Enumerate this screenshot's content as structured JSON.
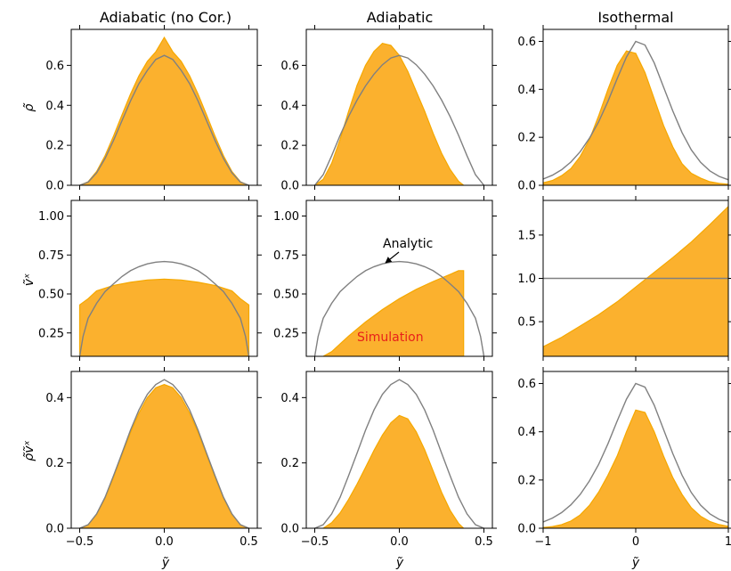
{
  "figure": {
    "column_titles": [
      "Adiabatic (no Cor.)",
      "Adiabatic",
      "Isothermal"
    ],
    "row_ylabels": [
      "ρ̃",
      "ṽˣ",
      "ρ̃ṽˣ"
    ],
    "col_xlabels": [
      "ỹ",
      "ỹ",
      "ỹ"
    ]
  },
  "colors": {
    "simulation_fill": "#fbb12e",
    "simulation_edge": "#f5a800",
    "analytic_line": "#808080",
    "annotation_red": "#e8211a"
  },
  "annotations": {
    "analytic": "Analytic",
    "simulation": "Simulation"
  },
  "chart_data": [
    {
      "type": "area",
      "panel": "row1-col1",
      "title": "Adiabatic (no Cor.)",
      "ylabel": "ρ̃",
      "xlabel": "",
      "xlim": [
        -0.55,
        0.55
      ],
      "ylim": [
        0,
        0.78
      ],
      "xticks": [
        -0.5,
        0.0,
        0.5
      ],
      "xticklabels": [
        "",
        "",
        ""
      ],
      "yticks": [
        0.0,
        0.2,
        0.4,
        0.6
      ],
      "yticklabels": [
        "0.0",
        "0.2",
        "0.4",
        "0.6"
      ],
      "series": [
        {
          "name": "Simulation",
          "kind": "fill",
          "x": [
            -0.5,
            -0.45,
            -0.4,
            -0.35,
            -0.3,
            -0.25,
            -0.2,
            -0.15,
            -0.1,
            -0.05,
            0.0,
            0.05,
            0.1,
            0.15,
            0.2,
            0.25,
            0.3,
            0.35,
            0.4,
            0.45,
            0.5
          ],
          "y": [
            0.0,
            0.018,
            0.069,
            0.148,
            0.246,
            0.352,
            0.456,
            0.548,
            0.62,
            0.668,
            0.74,
            0.668,
            0.62,
            0.548,
            0.456,
            0.352,
            0.246,
            0.148,
            0.069,
            0.018,
            0.0
          ]
        },
        {
          "name": "Analytic",
          "kind": "line",
          "x": [
            -0.5,
            -0.45,
            -0.4,
            -0.35,
            -0.3,
            -0.25,
            -0.2,
            -0.15,
            -0.1,
            -0.05,
            0.0,
            0.05,
            0.1,
            0.15,
            0.2,
            0.25,
            0.3,
            0.35,
            0.4,
            0.45,
            0.5
          ],
          "y": [
            0.0,
            0.016,
            0.062,
            0.134,
            0.224,
            0.323,
            0.421,
            0.508,
            0.575,
            0.63,
            0.65,
            0.63,
            0.575,
            0.508,
            0.421,
            0.323,
            0.224,
            0.134,
            0.062,
            0.016,
            0.0
          ]
        }
      ]
    },
    {
      "type": "area",
      "panel": "row1-col2",
      "title": "Adiabatic",
      "ylabel": "",
      "xlabel": "",
      "xlim": [
        -0.55,
        0.55
      ],
      "ylim": [
        0,
        0.78
      ],
      "xticks": [
        -0.5,
        0.0,
        0.5
      ],
      "xticklabels": [
        "",
        "",
        ""
      ],
      "yticks": [
        0.0,
        0.2,
        0.4,
        0.6
      ],
      "yticklabels": [
        "0.0",
        "0.2",
        "0.4",
        "0.6"
      ],
      "series": [
        {
          "name": "Simulation",
          "kind": "fill",
          "x": [
            -0.5,
            -0.45,
            -0.4,
            -0.35,
            -0.3,
            -0.25,
            -0.2,
            -0.15,
            -0.1,
            -0.05,
            0.0,
            0.05,
            0.1,
            0.15,
            0.2,
            0.25,
            0.3,
            0.35,
            0.38
          ],
          "y": [
            0.0,
            0.03,
            0.11,
            0.23,
            0.37,
            0.5,
            0.6,
            0.67,
            0.71,
            0.7,
            0.65,
            0.57,
            0.47,
            0.37,
            0.26,
            0.16,
            0.08,
            0.02,
            0.0
          ]
        },
        {
          "name": "Analytic",
          "kind": "line",
          "x": [
            -0.5,
            -0.45,
            -0.4,
            -0.35,
            -0.3,
            -0.25,
            -0.2,
            -0.15,
            -0.1,
            -0.05,
            0.0,
            0.05,
            0.1,
            0.15,
            0.2,
            0.25,
            0.3,
            0.35,
            0.4,
            0.45,
            0.5
          ],
          "y": [
            0.0,
            0.053,
            0.148,
            0.25,
            0.344,
            0.426,
            0.497,
            0.556,
            0.603,
            0.637,
            0.65,
            0.637,
            0.603,
            0.556,
            0.497,
            0.426,
            0.344,
            0.25,
            0.148,
            0.053,
            0.0
          ]
        }
      ]
    },
    {
      "type": "area",
      "panel": "row1-col3",
      "title": "Isothermal",
      "ylabel": "",
      "xlabel": "",
      "xlim": [
        -1,
        1
      ],
      "ylim": [
        0,
        0.65
      ],
      "xticks": [
        -1,
        0,
        1
      ],
      "xticklabels": [
        "",
        "",
        ""
      ],
      "yticks": [
        0.0,
        0.2,
        0.4,
        0.6
      ],
      "yticklabels": [
        "0.0",
        "0.2",
        "0.4",
        "0.6"
      ],
      "series": [
        {
          "name": "Simulation",
          "kind": "fill",
          "x": [
            -1.0,
            -0.9,
            -0.8,
            -0.7,
            -0.6,
            -0.5,
            -0.4,
            -0.3,
            -0.2,
            -0.1,
            0.0,
            0.1,
            0.2,
            0.3,
            0.4,
            0.5,
            0.6,
            0.7,
            0.8,
            0.9,
            1.0
          ],
          "y": [
            0.01,
            0.02,
            0.04,
            0.07,
            0.12,
            0.19,
            0.29,
            0.4,
            0.5,
            0.56,
            0.55,
            0.47,
            0.36,
            0.25,
            0.16,
            0.09,
            0.05,
            0.03,
            0.015,
            0.008,
            0.004
          ]
        },
        {
          "name": "Analytic",
          "kind": "line",
          "x": [
            -1.0,
            -0.9,
            -0.8,
            -0.7,
            -0.6,
            -0.5,
            -0.4,
            -0.3,
            -0.2,
            -0.1,
            0.0,
            0.1,
            0.2,
            0.3,
            0.4,
            0.5,
            0.6,
            0.7,
            0.8,
            0.9,
            1.0
          ],
          "y": [
            0.026,
            0.042,
            0.065,
            0.097,
            0.14,
            0.196,
            0.265,
            0.35,
            0.445,
            0.535,
            0.6,
            0.585,
            0.51,
            0.41,
            0.31,
            0.22,
            0.148,
            0.096,
            0.06,
            0.037,
            0.023
          ]
        }
      ]
    },
    {
      "type": "area",
      "panel": "row2-col1",
      "title": "",
      "ylabel": "ṽˣ",
      "xlabel": "",
      "xlim": [
        -0.55,
        0.55
      ],
      "ylim": [
        0.1,
        1.1
      ],
      "xticks": [
        -0.5,
        0.0,
        0.5
      ],
      "xticklabels": [
        "",
        "",
        ""
      ],
      "yticks": [
        0.25,
        0.5,
        0.75,
        1.0
      ],
      "yticklabels": [
        "0.25",
        "0.50",
        "0.75",
        "1.00"
      ],
      "series": [
        {
          "name": "Simulation",
          "kind": "fill",
          "x": [
            -0.5,
            -0.45,
            -0.4,
            -0.3,
            -0.2,
            -0.1,
            0.0,
            0.1,
            0.2,
            0.3,
            0.4,
            0.45,
            0.5
          ],
          "y": [
            0.43,
            0.47,
            0.52,
            0.555,
            0.575,
            0.59,
            0.595,
            0.59,
            0.575,
            0.555,
            0.52,
            0.47,
            0.43
          ]
        },
        {
          "name": "Analytic",
          "kind": "line",
          "x": [
            -0.5,
            -0.48,
            -0.45,
            -0.4,
            -0.35,
            -0.3,
            -0.25,
            -0.2,
            -0.15,
            -0.1,
            -0.05,
            0.0,
            0.05,
            0.1,
            0.15,
            0.2,
            0.25,
            0.3,
            0.35,
            0.4,
            0.45,
            0.48,
            0.5
          ],
          "y": [
            0.1,
            0.228,
            0.344,
            0.44,
            0.515,
            0.565,
            0.612,
            0.649,
            0.675,
            0.693,
            0.704,
            0.708,
            0.704,
            0.693,
            0.675,
            0.649,
            0.612,
            0.565,
            0.515,
            0.44,
            0.344,
            0.228,
            0.1
          ]
        }
      ]
    },
    {
      "type": "area",
      "panel": "row2-col2",
      "title": "",
      "ylabel": "",
      "xlabel": "",
      "xlim": [
        -0.55,
        0.55
      ],
      "ylim": [
        0.1,
        1.1
      ],
      "xticks": [
        -0.5,
        0.0,
        0.5
      ],
      "xticklabels": [
        "",
        "",
        ""
      ],
      "yticks": [
        0.25,
        0.5,
        0.75,
        1.0
      ],
      "yticklabels": [
        "0.25",
        "0.50",
        "0.75",
        "1.00"
      ],
      "series": [
        {
          "name": "Simulation",
          "kind": "fill",
          "x": [
            -0.45,
            -0.4,
            -0.3,
            -0.2,
            -0.1,
            0.0,
            0.1,
            0.2,
            0.3,
            0.35,
            0.38
          ],
          "y": [
            0.1,
            0.13,
            0.23,
            0.32,
            0.4,
            0.47,
            0.53,
            0.58,
            0.625,
            0.65,
            0.65
          ]
        },
        {
          "name": "Analytic",
          "kind": "line",
          "x": [
            -0.5,
            -0.48,
            -0.45,
            -0.4,
            -0.35,
            -0.3,
            -0.25,
            -0.2,
            -0.15,
            -0.1,
            -0.05,
            0.0,
            0.05,
            0.1,
            0.15,
            0.2,
            0.25,
            0.3,
            0.35,
            0.4,
            0.45,
            0.48,
            0.5
          ],
          "y": [
            0.1,
            0.228,
            0.344,
            0.44,
            0.515,
            0.565,
            0.612,
            0.649,
            0.675,
            0.693,
            0.704,
            0.708,
            0.704,
            0.693,
            0.675,
            0.649,
            0.612,
            0.565,
            0.515,
            0.44,
            0.344,
            0.228,
            0.1
          ]
        }
      ]
    },
    {
      "type": "area",
      "panel": "row2-col3",
      "title": "",
      "ylabel": "",
      "xlabel": "",
      "xlim": [
        -1,
        1
      ],
      "ylim": [
        0.1,
        1.9
      ],
      "xticks": [
        -1,
        0,
        1
      ],
      "xticklabels": [
        "",
        "",
        ""
      ],
      "yticks": [
        0.5,
        1.0,
        1.5
      ],
      "yticklabels": [
        "0.5",
        "1.0",
        "1.5"
      ],
      "series": [
        {
          "name": "Simulation",
          "kind": "fill",
          "x": [
            -1.0,
            -0.8,
            -0.6,
            -0.4,
            -0.2,
            0.0,
            0.2,
            0.4,
            0.6,
            0.8,
            1.0
          ],
          "y": [
            0.21,
            0.32,
            0.45,
            0.58,
            0.73,
            0.9,
            1.07,
            1.24,
            1.42,
            1.62,
            1.83
          ]
        },
        {
          "name": "Analytic",
          "kind": "line",
          "x": [
            -1.0,
            1.0
          ],
          "y": [
            1.0,
            1.0
          ]
        }
      ]
    },
    {
      "type": "area",
      "panel": "row3-col1",
      "title": "",
      "ylabel": "ρ̃ṽˣ",
      "xlabel": "ỹ",
      "xlim": [
        -0.55,
        0.55
      ],
      "ylim": [
        0,
        0.48
      ],
      "xticks": [
        -0.5,
        0.0,
        0.5
      ],
      "xticklabels": [
        "−0.5",
        "0.0",
        "0.5"
      ],
      "yticks": [
        0.0,
        0.2,
        0.4
      ],
      "yticklabels": [
        "0.0",
        "0.2",
        "0.4"
      ],
      "series": [
        {
          "name": "Simulation",
          "kind": "fill",
          "x": [
            -0.5,
            -0.45,
            -0.4,
            -0.35,
            -0.3,
            -0.25,
            -0.2,
            -0.15,
            -0.1,
            -0.05,
            0.0,
            0.05,
            0.1,
            0.15,
            0.2,
            0.25,
            0.3,
            0.35,
            0.4,
            0.45,
            0.5
          ],
          "y": [
            0.0,
            0.011,
            0.042,
            0.092,
            0.156,
            0.225,
            0.293,
            0.352,
            0.4,
            0.43,
            0.44,
            0.43,
            0.4,
            0.352,
            0.293,
            0.225,
            0.156,
            0.092,
            0.042,
            0.011,
            0.0
          ]
        },
        {
          "name": "Analytic",
          "kind": "line",
          "x": [
            -0.5,
            -0.45,
            -0.4,
            -0.35,
            -0.3,
            -0.25,
            -0.2,
            -0.15,
            -0.1,
            -0.05,
            0.0,
            0.05,
            0.1,
            0.15,
            0.2,
            0.25,
            0.3,
            0.35,
            0.4,
            0.45,
            0.5
          ],
          "y": [
            0.0,
            0.011,
            0.044,
            0.095,
            0.161,
            0.23,
            0.3,
            0.362,
            0.41,
            0.44,
            0.455,
            0.44,
            0.41,
            0.362,
            0.3,
            0.23,
            0.161,
            0.095,
            0.044,
            0.011,
            0.0
          ]
        }
      ]
    },
    {
      "type": "area",
      "panel": "row3-col2",
      "title": "",
      "ylabel": "",
      "xlabel": "ỹ",
      "xlim": [
        -0.55,
        0.55
      ],
      "ylim": [
        0,
        0.48
      ],
      "xticks": [
        -0.5,
        0.0,
        0.5
      ],
      "xticklabels": [
        "−0.5",
        "0.0",
        "0.5"
      ],
      "yticks": [
        0.0,
        0.2,
        0.4
      ],
      "yticklabels": [
        "0.0",
        "0.2",
        "0.4"
      ],
      "series": [
        {
          "name": "Simulation",
          "kind": "fill",
          "x": [
            -0.45,
            -0.4,
            -0.35,
            -0.3,
            -0.25,
            -0.2,
            -0.15,
            -0.1,
            -0.05,
            0.0,
            0.05,
            0.1,
            0.15,
            0.2,
            0.25,
            0.3,
            0.35,
            0.38
          ],
          "y": [
            0.0,
            0.017,
            0.047,
            0.088,
            0.135,
            0.186,
            0.238,
            0.285,
            0.323,
            0.345,
            0.335,
            0.295,
            0.24,
            0.175,
            0.11,
            0.055,
            0.015,
            0.0
          ]
        },
        {
          "name": "Analytic",
          "kind": "line",
          "x": [
            -0.5,
            -0.45,
            -0.4,
            -0.35,
            -0.3,
            -0.25,
            -0.2,
            -0.15,
            -0.1,
            -0.05,
            0.0,
            0.05,
            0.1,
            0.15,
            0.2,
            0.25,
            0.3,
            0.35,
            0.4,
            0.45,
            0.5
          ],
          "y": [
            0.0,
            0.011,
            0.044,
            0.095,
            0.161,
            0.23,
            0.3,
            0.362,
            0.41,
            0.44,
            0.455,
            0.44,
            0.41,
            0.362,
            0.3,
            0.23,
            0.161,
            0.095,
            0.044,
            0.011,
            0.0
          ]
        }
      ]
    },
    {
      "type": "area",
      "panel": "row3-col3",
      "title": "",
      "ylabel": "",
      "xlabel": "ỹ",
      "xlim": [
        -1,
        1
      ],
      "ylim": [
        0,
        0.65
      ],
      "xticks": [
        -1,
        0,
        1
      ],
      "xticklabels": [
        "−1",
        "0",
        "1"
      ],
      "yticks": [
        0.0,
        0.2,
        0.4,
        0.6
      ],
      "yticklabels": [
        "0.0",
        "0.2",
        "0.4",
        "0.6"
      ],
      "series": [
        {
          "name": "Simulation",
          "kind": "fill",
          "x": [
            -1.0,
            -0.9,
            -0.8,
            -0.7,
            -0.6,
            -0.5,
            -0.4,
            -0.3,
            -0.2,
            -0.1,
            0.0,
            0.1,
            0.2,
            0.3,
            0.4,
            0.5,
            0.6,
            0.7,
            0.8,
            0.9,
            1.0
          ],
          "y": [
            0.003,
            0.007,
            0.015,
            0.03,
            0.055,
            0.095,
            0.15,
            0.22,
            0.3,
            0.4,
            0.49,
            0.48,
            0.4,
            0.3,
            0.21,
            0.14,
            0.085,
            0.05,
            0.028,
            0.015,
            0.008
          ]
        },
        {
          "name": "Analytic",
          "kind": "line",
          "x": [
            -1.0,
            -0.9,
            -0.8,
            -0.7,
            -0.6,
            -0.5,
            -0.4,
            -0.3,
            -0.2,
            -0.1,
            0.0,
            0.1,
            0.2,
            0.3,
            0.4,
            0.5,
            0.6,
            0.7,
            0.8,
            0.9,
            1.0
          ],
          "y": [
            0.026,
            0.042,
            0.065,
            0.097,
            0.14,
            0.196,
            0.265,
            0.35,
            0.445,
            0.535,
            0.6,
            0.585,
            0.51,
            0.41,
            0.31,
            0.22,
            0.148,
            0.096,
            0.06,
            0.037,
            0.023
          ]
        }
      ]
    }
  ]
}
